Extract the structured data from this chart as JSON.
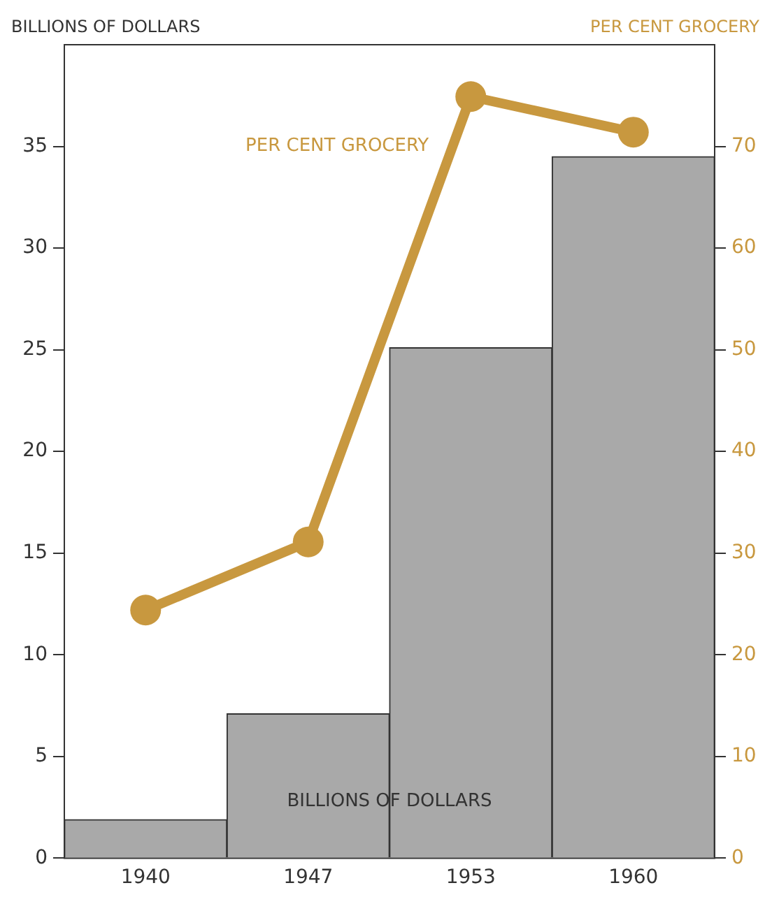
{
  "chart_data": {
    "type": "bar",
    "ylabel": "BILLIONS OF DOLLARS",
    "y2label": "PER CENT GROCERY",
    "categories": [
      "1940",
      "1947",
      "1953",
      "1960"
    ],
    "series": [
      {
        "color": "#a9a9a9",
        "values": [
          1.9,
          7.1,
          25.1,
          34.5
        ]
      },
      {
        "type": "line",
        "axis": "y2",
        "color": "#c8983f",
        "values": [
          24.4,
          31.1,
          74.9,
          71.4
        ]
      }
    ],
    "ylim": [
      0,
      40
    ],
    "yticks": [
      0,
      5,
      10,
      15,
      20,
      25,
      30,
      35
    ],
    "y2lim": [
      0,
      80
    ],
    "y2ticks": [
      0,
      10,
      20,
      30,
      40,
      50,
      60,
      70
    ],
    "marker": "circle",
    "grid": false,
    "legend": false,
    "annotations": [
      "PER CENT GROCERY",
      "BILLIONS OF DOLLARS"
    ]
  }
}
